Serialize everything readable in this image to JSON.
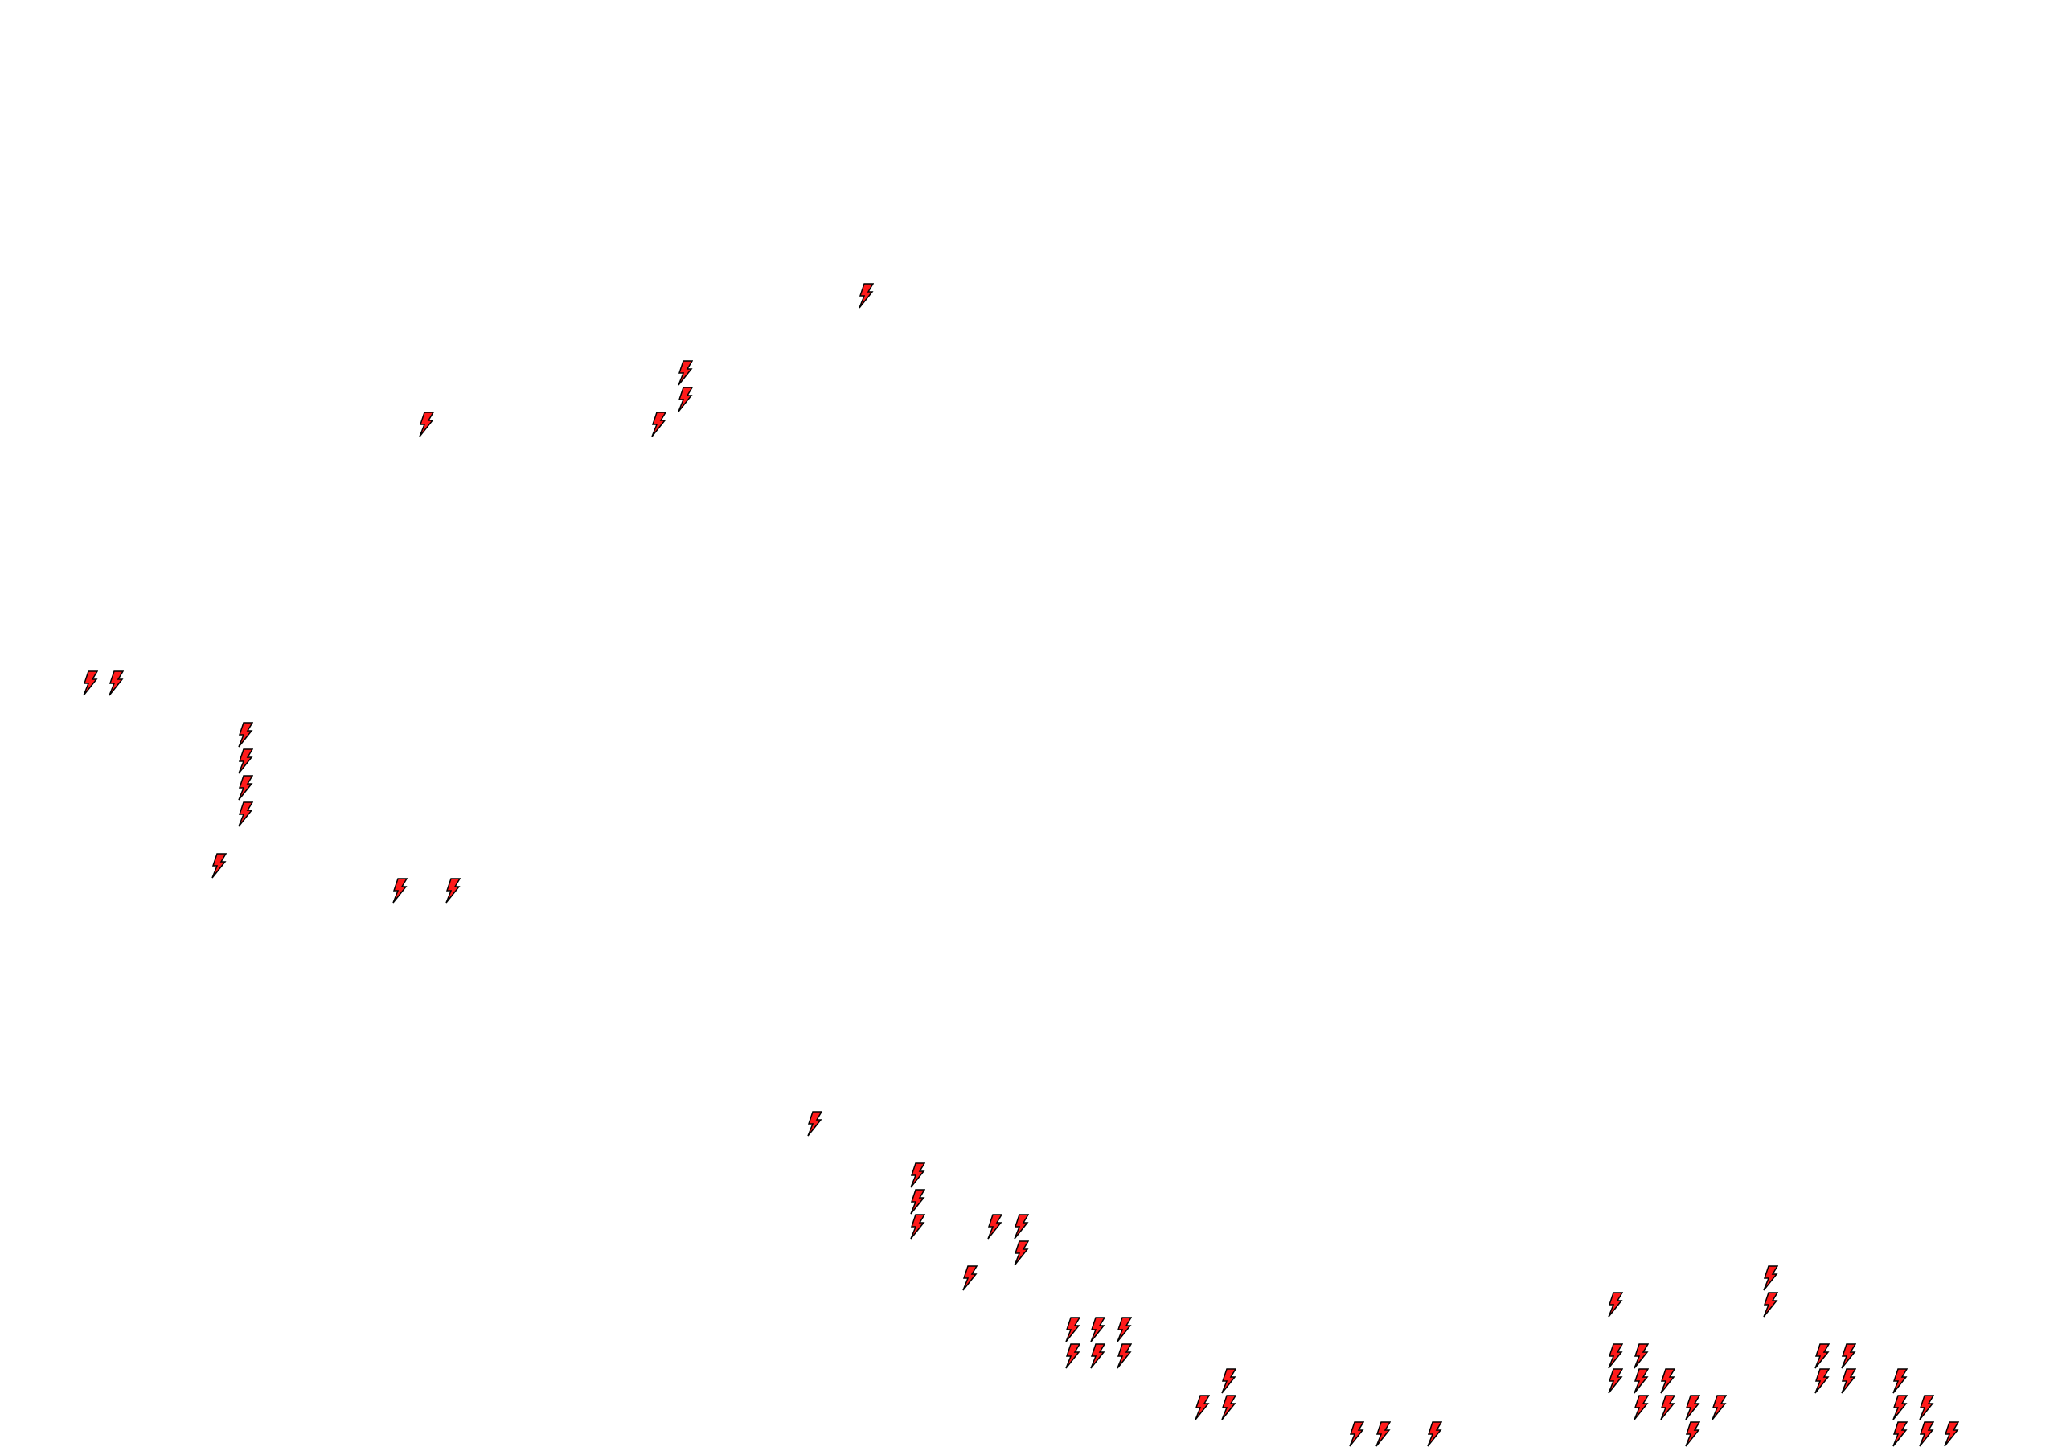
{
  "map": {
    "background_color": "#ffffff",
    "marker": {
      "icon": "lightning-bolt-icon",
      "fill_color": "#ff1a1a",
      "stroke_color": "#000000"
    },
    "marker_count": 60
  }
}
